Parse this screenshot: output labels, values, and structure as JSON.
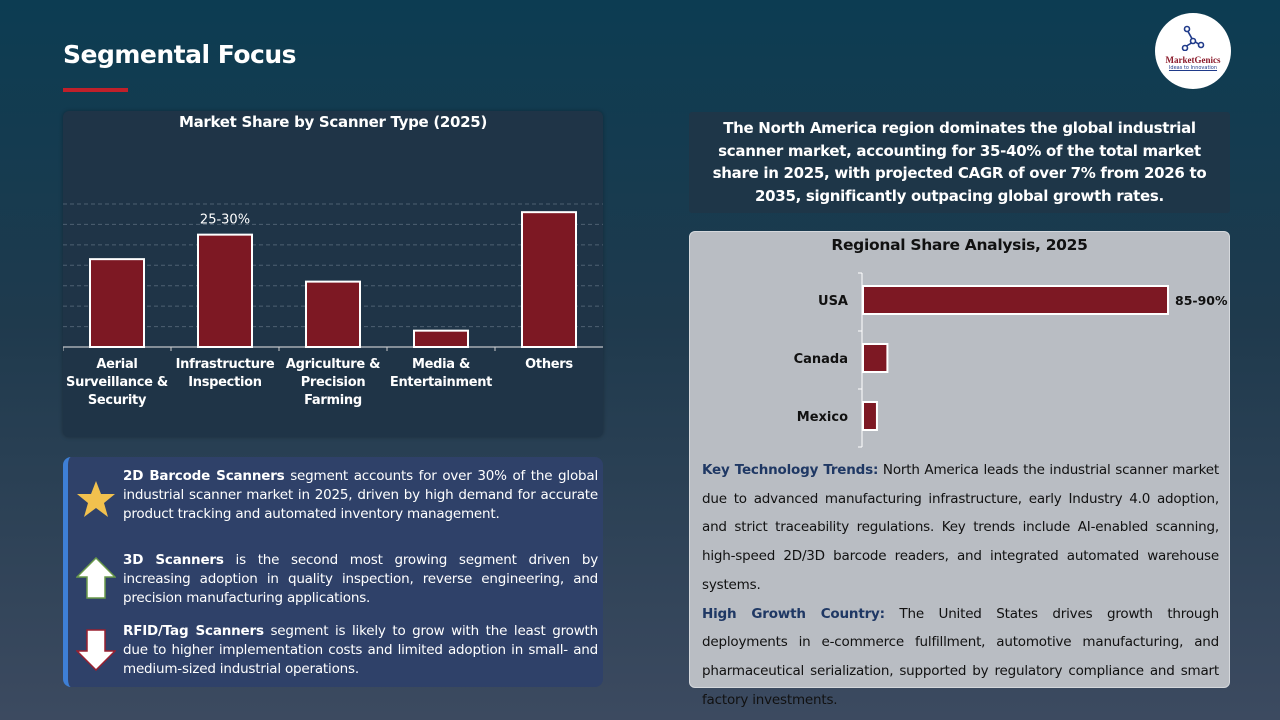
{
  "header": {
    "title": "Segmental Focus",
    "logo_name": "MarketGenics",
    "logo_tagline": "Ideas to Innovation"
  },
  "colors": {
    "bar": "#7d1823",
    "accent_rule": "#c0202a",
    "segment_box": "#2f4169",
    "heading_blue": "#1f3864"
  },
  "chart_data": [
    {
      "type": "bar",
      "title": "Market Share by Scanner Type (2025)",
      "categories": [
        "Aerial Surveillance & Security",
        "Infrastructure Inspection",
        "Agriculture & Precision Farming",
        "Media & Entertainment",
        "Others"
      ],
      "values": [
        21.5,
        27.5,
        16,
        4,
        33
      ],
      "data_labels": [
        "",
        "25-30%",
        "",
        "",
        ""
      ],
      "ylim": [
        0,
        35
      ],
      "grid": true,
      "gridline_style": "dashed",
      "yaxis_visible": false
    },
    {
      "type": "bar",
      "orientation": "horizontal",
      "title": "Regional Share Analysis, 2025",
      "categories": [
        "USA",
        "Canada",
        "Mexico"
      ],
      "values": [
        87.5,
        7,
        4
      ],
      "data_labels": [
        "85-90%",
        "",
        ""
      ],
      "xlim": [
        0,
        87.5
      ],
      "grid": false
    }
  ],
  "segments": [
    {
      "icon": "star-icon",
      "bold": "2D Barcode Scanners",
      "text": " segment accounts for over 30% of the global industrial scanner market in 2025, driven by high demand for accurate product tracking and automated inventory management."
    },
    {
      "icon": "arrow-up-icon",
      "bold": "3D Scanners",
      "text": " is the second most growing segment driven by increasing adoption in quality inspection, reverse engineering, and precision manufacturing applications."
    },
    {
      "icon": "arrow-down-icon",
      "bold": "RFID/Tag Scanners",
      "text": " segment is likely to grow with the least growth due to higher implementation costs and limited adoption in small- and medium-sized industrial operations."
    }
  ],
  "summary": "The North America region dominates the global industrial scanner market, accounting for 35-40% of the total market share in 2025, with projected CAGR of over 7% from 2026 to 2035, significantly outpacing global growth rates.",
  "trends": {
    "tech_heading": "Key Technology Trends:",
    "tech_text": " North America leads the industrial scanner market due to advanced manufacturing infrastructure, early Industry 4.0 adoption, and strict traceability regulations. Key trends include AI-enabled scanning, high-speed 2D/3D barcode readers, and integrated automated warehouse systems.",
    "growth_heading": "High Growth Country:",
    "growth_text": " The United States drives growth through deployments in e-commerce fulfillment, automotive manufacturing, and pharmaceutical serialization, supported by regulatory compliance and smart factory investments."
  }
}
